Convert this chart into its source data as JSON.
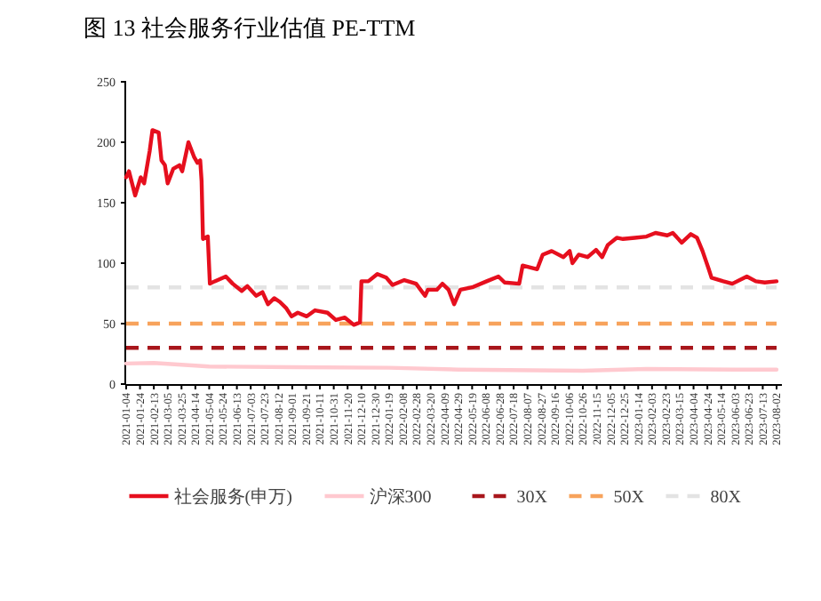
{
  "chart_data": {
    "type": "line",
    "title": "图 13 社会服务行业估值 PE-TTM",
    "xlim": [
      "2021-01-04",
      "2023-08-02"
    ],
    "xticks": [
      "2021-01-04",
      "2021-01-24",
      "2021-02-13",
      "2021-03-05",
      "2021-03-25",
      "2021-04-14",
      "2021-05-04",
      "2021-05-24",
      "2021-06-13",
      "2021-07-03",
      "2021-07-23",
      "2021-08-12",
      "2021-09-01",
      "2021-09-21",
      "2021-10-11",
      "2021-10-31",
      "2021-11-20",
      "2021-12-10",
      "2021-12-30",
      "2022-01-19",
      "2022-02-08",
      "2022-02-28",
      "2022-03-20",
      "2022-04-09",
      "2022-04-29",
      "2022-05-19",
      "2022-06-08",
      "2022-06-28",
      "2022-07-18",
      "2022-08-07",
      "2022-08-27",
      "2022-09-16",
      "2022-10-06",
      "2022-10-26",
      "2022-11-15",
      "2022-12-05",
      "2022-12-25",
      "2023-01-14",
      "2023-02-03",
      "2023-02-23",
      "2023-03-15",
      "2023-04-04",
      "2023-04-24",
      "2023-05-14",
      "2023-06-03",
      "2023-06-23",
      "2023-07-13",
      "2023-08-02"
    ],
    "ylim": [
      0,
      250
    ],
    "yticks": [
      0,
      50,
      100,
      150,
      200,
      250
    ],
    "legend": "bottom",
    "series": [
      {
        "name": "社会服务(申万)",
        "color": "#e60f1e",
        "line_style": "solid",
        "x": [
          "2021-01-04",
          "2021-01-08",
          "2021-01-17",
          "2021-01-25",
          "2021-01-30",
          "2021-02-07",
          "2021-02-11",
          "2021-02-20",
          "2021-02-24",
          "2021-03-01",
          "2021-03-05",
          "2021-03-13",
          "2021-03-22",
          "2021-03-26",
          "2021-04-04",
          "2021-04-12",
          "2021-04-17",
          "2021-04-21",
          "2021-04-23",
          "2021-04-25",
          "2021-05-02",
          "2021-05-05",
          "2021-05-12",
          "2021-05-28",
          "2021-06-07",
          "2021-06-20",
          "2021-06-28",
          "2021-07-11",
          "2021-07-20",
          "2021-07-28",
          "2021-08-06",
          "2021-08-14",
          "2021-08-23",
          "2021-08-31",
          "2021-09-09",
          "2021-09-22",
          "2021-10-04",
          "2021-10-22",
          "2021-11-03",
          "2021-11-16",
          "2021-11-29",
          "2021-12-08",
          "2021-12-10",
          "2021-12-20",
          "2022-01-02",
          "2022-01-15",
          "2022-01-24",
          "2022-02-10",
          "2022-02-27",
          "2022-03-12",
          "2022-03-16",
          "2022-03-29",
          "2022-04-06",
          "2022-04-15",
          "2022-04-23",
          "2022-05-02",
          "2022-05-19",
          "2022-06-09",
          "2022-06-26",
          "2022-07-05",
          "2022-07-26",
          "2022-07-31",
          "2022-08-21",
          "2022-08-29",
          "2022-09-11",
          "2022-09-28",
          "2022-10-07",
          "2022-10-11",
          "2022-10-20",
          "2022-11-02",
          "2022-11-14",
          "2022-11-23",
          "2022-12-01",
          "2022-12-14",
          "2022-12-23",
          "2023-01-09",
          "2023-01-26",
          "2023-02-08",
          "2023-02-25",
          "2023-03-05",
          "2023-03-18",
          "2023-03-31",
          "2023-04-09",
          "2023-04-17",
          "2023-04-26",
          "2023-04-30",
          "2023-05-17",
          "2023-05-30",
          "2023-06-20",
          "2023-07-03",
          "2023-07-16",
          "2023-08-02"
        ],
        "values": [
          171,
          176,
          156,
          171,
          166,
          193,
          210,
          208,
          185,
          181,
          166,
          178,
          181,
          176,
          200,
          188,
          183,
          185,
          168,
          120,
          122,
          83,
          85,
          89,
          83,
          77,
          81,
          73,
          76,
          66,
          71,
          68,
          63,
          56,
          59,
          56,
          61,
          59,
          53,
          55,
          49,
          51,
          85,
          85,
          91,
          88,
          82,
          86,
          83,
          73,
          78,
          78,
          83,
          78,
          66,
          78,
          80,
          85,
          89,
          84,
          83,
          98,
          95,
          107,
          110,
          105,
          110,
          100,
          107,
          105,
          111,
          105,
          115,
          121,
          120,
          121,
          122,
          125,
          123,
          125,
          117,
          124,
          121,
          110,
          95,
          88,
          85,
          83,
          89,
          85,
          84,
          85
        ]
      },
      {
        "name": "沪深300",
        "color": "#ffc9cf",
        "line_style": "solid",
        "x": [
          "2021-01-04",
          "2021-02-13",
          "2021-05-04",
          "2021-09-01",
          "2022-01-19",
          "2022-04-29",
          "2022-10-26",
          "2023-01-26",
          "2023-06-03",
          "2023-08-02"
        ],
        "values": [
          17,
          17.5,
          14.5,
          14,
          13.5,
          12,
          11,
          12.5,
          12,
          12
        ]
      },
      {
        "name": "30X",
        "color": "#a8161b",
        "line_style": "dashed",
        "x": [
          "2021-01-04",
          "2023-08-02"
        ],
        "values": [
          30,
          30
        ]
      },
      {
        "name": "50X",
        "color": "#f7a35c",
        "line_style": "dashed",
        "x": [
          "2021-01-04",
          "2023-08-02"
        ],
        "values": [
          50,
          50
        ]
      },
      {
        "name": "80X",
        "color": "#e3e3e3",
        "line_style": "dashed",
        "x": [
          "2021-01-04",
          "2023-08-02"
        ],
        "values": [
          80,
          80
        ]
      }
    ]
  }
}
